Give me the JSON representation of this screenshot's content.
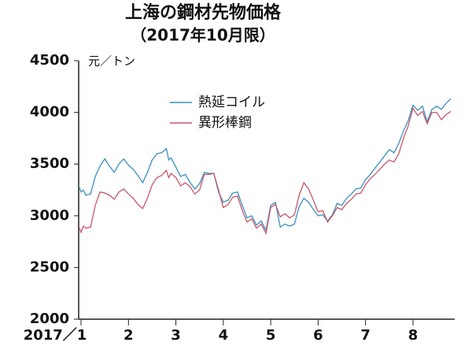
{
  "chart_data": {
    "type": "line",
    "title": "上海の鋼材先物価格",
    "subtitle": "（2017年10月限）",
    "y_label": "元／トン",
    "x": [
      0.97,
      1.0,
      1.05,
      1.1,
      1.2,
      1.3,
      1.4,
      1.5,
      1.6,
      1.7,
      1.8,
      1.9,
      2.0,
      2.1,
      2.2,
      2.3,
      2.4,
      2.5,
      2.6,
      2.7,
      2.8,
      2.85,
      2.9,
      3.0,
      3.1,
      3.2,
      3.3,
      3.4,
      3.5,
      3.6,
      3.7,
      3.8,
      3.9,
      4.0,
      4.1,
      4.2,
      4.3,
      4.4,
      4.5,
      4.6,
      4.7,
      4.8,
      4.9,
      5.0,
      5.1,
      5.2,
      5.3,
      5.4,
      5.5,
      5.6,
      5.7,
      5.8,
      5.9,
      6.0,
      6.1,
      6.2,
      6.3,
      6.4,
      6.5,
      6.6,
      6.7,
      6.8,
      6.9,
      7.0,
      7.1,
      7.2,
      7.3,
      7.4,
      7.5,
      7.6,
      7.7,
      7.8,
      7.9,
      8.0,
      8.1,
      8.2,
      8.3,
      8.4,
      8.5,
      8.6,
      8.7,
      8.8
    ],
    "series": [
      {
        "name": "熱延コイル",
        "color": "#3a8fc0",
        "values": [
          3270,
          3230,
          3250,
          3200,
          3210,
          3380,
          3480,
          3550,
          3480,
          3420,
          3500,
          3550,
          3490,
          3450,
          3390,
          3320,
          3420,
          3540,
          3600,
          3610,
          3650,
          3540,
          3560,
          3470,
          3380,
          3400,
          3320,
          3260,
          3310,
          3420,
          3410,
          3410,
          3230,
          3130,
          3150,
          3220,
          3230,
          3100,
          2980,
          3000,
          2910,
          2950,
          2860,
          3100,
          3130,
          2890,
          2920,
          2900,
          2920,
          3090,
          3170,
          3130,
          3060,
          3000,
          3010,
          2950,
          3010,
          3120,
          3100,
          3170,
          3210,
          3260,
          3270,
          3350,
          3400,
          3460,
          3520,
          3580,
          3640,
          3610,
          3700,
          3820,
          3920,
          4070,
          4020,
          4060,
          3910,
          4030,
          4060,
          4030,
          4090,
          4130
        ]
      },
      {
        "name": "異形棒鋼",
        "color": "#c8566a",
        "values": [
          2880,
          2840,
          2900,
          2880,
          2890,
          3100,
          3230,
          3220,
          3200,
          3160,
          3230,
          3260,
          3210,
          3170,
          3110,
          3070,
          3170,
          3300,
          3370,
          3390,
          3440,
          3370,
          3410,
          3370,
          3290,
          3320,
          3280,
          3210,
          3250,
          3400,
          3400,
          3410,
          3250,
          3080,
          3110,
          3180,
          3190,
          3050,
          2940,
          2970,
          2880,
          2920,
          2830,
          3080,
          3110,
          2990,
          3020,
          2980,
          3010,
          3200,
          3320,
          3260,
          3150,
          3040,
          3050,
          2940,
          3000,
          3080,
          3060,
          3120,
          3160,
          3210,
          3220,
          3300,
          3360,
          3400,
          3450,
          3500,
          3540,
          3520,
          3600,
          3750,
          3870,
          4040,
          3970,
          4010,
          3890,
          4000,
          4000,
          3930,
          3980,
          4010
        ]
      }
    ],
    "xlim": [
      0.95,
      8.88
    ],
    "xticks": [
      {
        "value": 1,
        "label": "2017／1"
      },
      2,
      3,
      4,
      5,
      6,
      7,
      8
    ],
    "ylim": [
      2000,
      4500
    ],
    "yticks": [
      2000,
      2500,
      3000,
      3500,
      4000,
      4500
    ],
    "grid": false,
    "legend": "upper left"
  }
}
